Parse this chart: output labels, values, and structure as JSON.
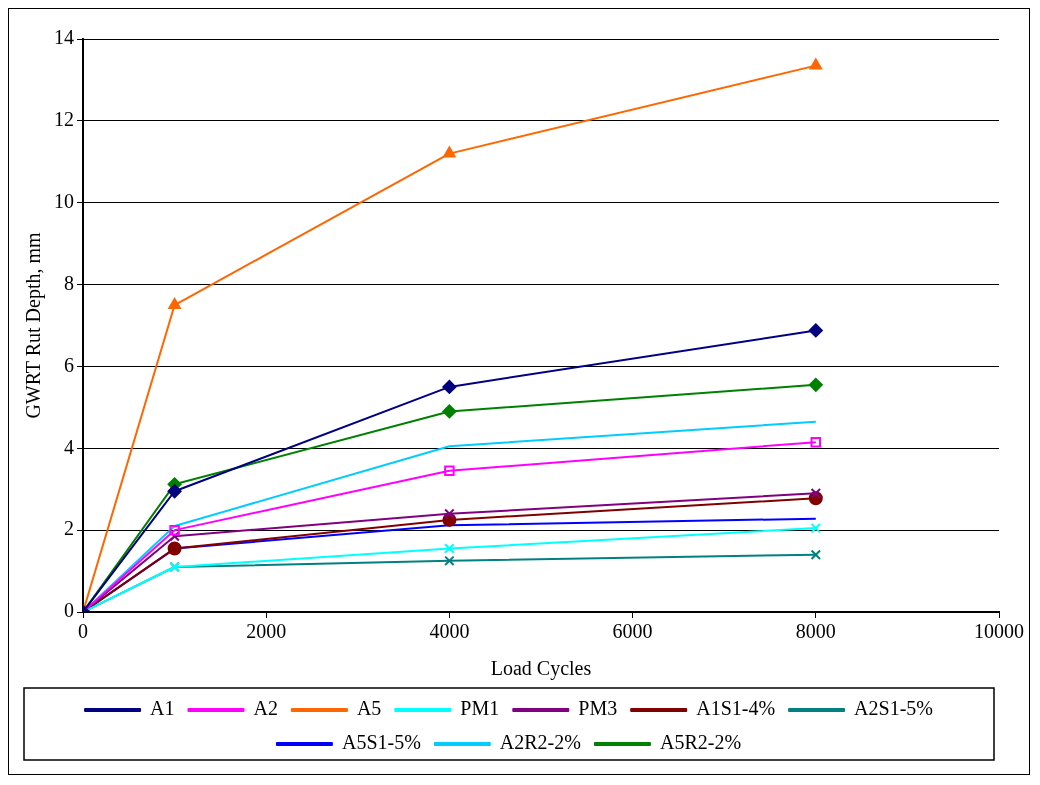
{
  "chart_data": {
    "type": "line",
    "xlabel": "Load Cycles",
    "ylabel": "GWRT Rut Depth, mm",
    "x": [
      0,
      1000,
      4000,
      8000
    ],
    "xlim": [
      0,
      10000
    ],
    "xticks": [
      0,
      2000,
      4000,
      6000,
      8000,
      10000
    ],
    "ylim": [
      0,
      14
    ],
    "yticks": [
      0,
      2,
      4,
      6,
      8,
      10,
      12,
      14
    ],
    "grid": "y",
    "legend": "bottom",
    "line_style": "solid",
    "series": [
      {
        "name": "A1",
        "color": "#000080",
        "marker": "diamond",
        "values": [
          0,
          2.95,
          5.5,
          6.88
        ]
      },
      {
        "name": "A2",
        "color": "#ff00ff",
        "marker": "square",
        "values": [
          0,
          2.0,
          3.45,
          4.15
        ]
      },
      {
        "name": "A5",
        "color": "#ff6600",
        "marker": "triangle",
        "values": [
          0,
          7.5,
          11.2,
          13.35
        ]
      },
      {
        "name": "PM1",
        "color": "#00ffff",
        "marker": "cross",
        "values": [
          0,
          1.1,
          1.55,
          2.05
        ]
      },
      {
        "name": "PM3",
        "color": "#800080",
        "marker": "cross",
        "values": [
          0,
          1.85,
          2.4,
          2.9
        ]
      },
      {
        "name": "A1S1-4%",
        "color": "#800000",
        "marker": "circle",
        "values": [
          0,
          1.55,
          2.25,
          2.78
        ]
      },
      {
        "name": "A2S1-5%",
        "color": "#008080",
        "marker": "cross",
        "values": [
          0,
          1.1,
          1.25,
          1.4
        ]
      },
      {
        "name": "A5S1-5%",
        "color": "#0000ff",
        "marker": "none",
        "values": [
          0,
          1.55,
          2.12,
          2.28
        ]
      },
      {
        "name": "A2R2-2%",
        "color": "#00ccff",
        "marker": "none",
        "values": [
          0,
          2.1,
          4.05,
          4.65
        ]
      },
      {
        "name": "A5R2-2%",
        "color": "#008000",
        "marker": "diamond",
        "values": [
          0,
          3.12,
          4.9,
          5.55
        ]
      }
    ]
  }
}
